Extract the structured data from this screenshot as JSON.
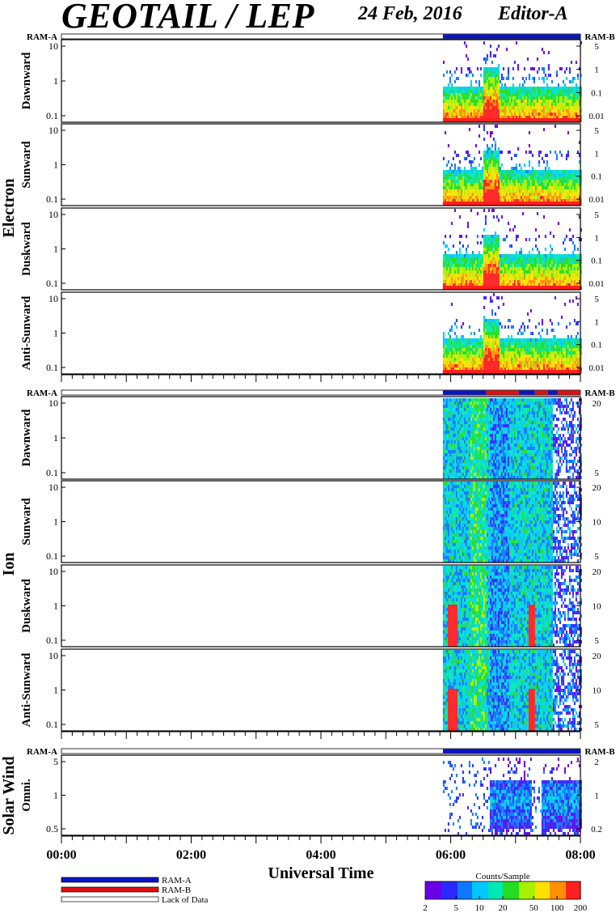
{
  "header": {
    "title": "GEOTAIL / LEP",
    "date": "24 Feb, 2016",
    "editor": "Editor-A"
  },
  "colors": {
    "ram_a": "#0a14c8",
    "ram_b": "#e01010",
    "lack": "#ffffff"
  },
  "chart_data": [
    {
      "type": "heatmap",
      "group": "Electron",
      "ram_a_label": "RAM-A",
      "ram_b_label": "RAM-B",
      "panels": [
        {
          "label": "Dawnward",
          "left_ticks": [
            "10",
            "1",
            "0.1"
          ],
          "right_ticks": [
            "5",
            "1",
            "0.1",
            "0.01"
          ],
          "hot_bands": [
            [
              6.45,
              6.55
            ]
          ]
        },
        {
          "label": "Sunward",
          "left_ticks": [
            "10",
            "1",
            "0.1"
          ],
          "right_ticks": [
            "5",
            "1",
            "0.1",
            "0.01"
          ],
          "hot_bands": [
            [
              6.45,
              6.55
            ]
          ]
        },
        {
          "label": "Duskward",
          "left_ticks": [
            "10",
            "1",
            "0.1"
          ],
          "right_ticks": [
            "5",
            "1",
            "0.1",
            "0.01"
          ],
          "hot_bands": [
            [
              6.45,
              6.55
            ]
          ]
        },
        {
          "label": "Anti-Sunward",
          "left_ticks": [
            "10",
            "1",
            "0.1"
          ],
          "right_ticks": [
            "5",
            "1",
            "0.1",
            "0.01"
          ],
          "hot_bands": [
            [
              6.45,
              6.55
            ]
          ]
        }
      ],
      "data_start_hour": 5.88,
      "mode_segments": [
        {
          "start": 5.88,
          "end": 8.0,
          "mode": "RAM-A"
        }
      ],
      "pattern": "electron"
    },
    {
      "type": "heatmap",
      "group": "Ion",
      "ram_a_label": "RAM-A",
      "ram_b_label": "RAM-B",
      "panels": [
        {
          "label": "Dawnward",
          "left_ticks": [
            "10",
            "1",
            "0.1"
          ],
          "right_ticks": [
            "20",
            "5"
          ],
          "hot_bands": []
        },
        {
          "label": "Sunward",
          "left_ticks": [
            "10",
            "1",
            "0.1"
          ],
          "right_ticks": [
            "20",
            "10",
            "5"
          ],
          "hot_bands": []
        },
        {
          "label": "Duskward",
          "left_ticks": [
            "10",
            "1",
            "0.1"
          ],
          "right_ticks": [
            "20",
            "10",
            "5"
          ],
          "hot_bands": [
            [
              5.95,
              6.1
            ],
            [
              7.2,
              7.28
            ]
          ]
        },
        {
          "label": "Anti-Sunward",
          "left_ticks": [
            "10",
            "1",
            "0.1"
          ],
          "right_ticks": [
            "20",
            "10",
            "5"
          ],
          "hot_bands": [
            [
              5.95,
              6.1
            ],
            [
              7.2,
              7.28
            ]
          ]
        }
      ],
      "data_start_hour": 5.88,
      "mode_segments": [
        {
          "start": 5.88,
          "end": 6.55,
          "mode": "RAM-A"
        },
        {
          "start": 6.55,
          "end": 7.05,
          "mode": "RAM-B"
        },
        {
          "start": 7.05,
          "end": 7.3,
          "mode": "RAM-A"
        },
        {
          "start": 7.3,
          "end": 7.5,
          "mode": "RAM-B"
        },
        {
          "start": 7.5,
          "end": 7.65,
          "mode": "RAM-A"
        },
        {
          "start": 7.65,
          "end": 8.0,
          "mode": "RAM-B"
        }
      ],
      "pattern": "ion"
    },
    {
      "type": "heatmap",
      "group": "Solar Wind",
      "ram_a_label": "RAM-A",
      "ram_b_label": "RAM-B",
      "panels": [
        {
          "label": "Omni.",
          "left_ticks": [
            "5",
            "1",
            "0.5"
          ],
          "right_ticks": [
            "2",
            "1",
            "0.2"
          ],
          "hot_bands": []
        }
      ],
      "data_start_hour": 5.88,
      "mode_segments": [
        {
          "start": 5.88,
          "end": 8.0,
          "mode": "RAM-A"
        }
      ],
      "pattern": "solar"
    }
  ],
  "x_axis": {
    "label": "Universal Time",
    "range": [
      0,
      8
    ],
    "ticks": [
      "00:00",
      "02:00",
      "04:00",
      "06:00",
      "08:00"
    ]
  },
  "legend": {
    "items": [
      "RAM-A",
      "RAM-B",
      "Lack of Data"
    ]
  },
  "colorbar": {
    "title": "Counts/Sample",
    "ticks": [
      "2",
      "5",
      "10",
      "20",
      "50",
      "100",
      "200"
    ]
  }
}
